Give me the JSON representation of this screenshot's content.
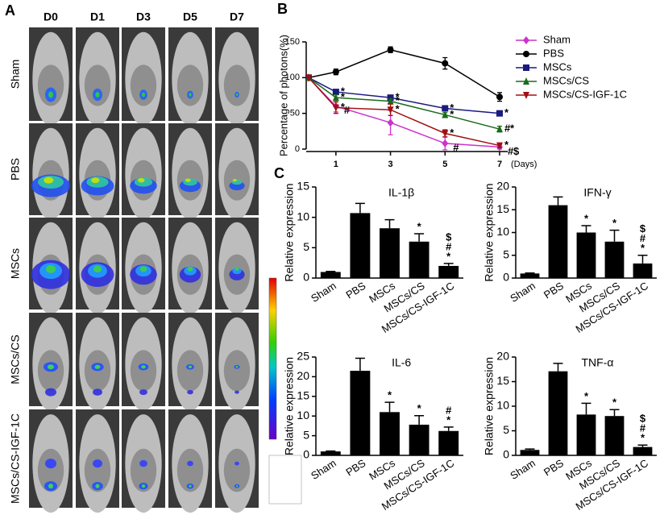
{
  "image_panel": {
    "label": "A",
    "columns": [
      "D0",
      "D1",
      "D3",
      "D5",
      "D7"
    ],
    "rows": [
      "Sham",
      "PBS",
      "MSCs",
      "MSCs/CS",
      "MSCs/CS-IGF-1C"
    ]
  },
  "chart_data": [
    {
      "type": "line",
      "panel": "B",
      "y_label": "Percentage of photons(%)",
      "x_unit_label": "(Days)",
      "x": [
        0,
        1,
        3,
        5,
        7
      ],
      "xlim": [
        0,
        7
      ],
      "xticks": [
        1,
        3,
        5,
        7
      ],
      "ylim": [
        0,
        150
      ],
      "yticks": [
        0,
        50,
        100,
        150
      ],
      "series": [
        {
          "name": "Sham",
          "color": "#cc33cc",
          "marker": "diamond",
          "values": [
            100,
            60,
            37,
            8,
            3
          ],
          "errors": [
            0,
            8,
            17,
            9,
            3
          ],
          "sig": [
            null,
            [
              "#"
            ],
            null,
            [
              "#"
            ],
            [
              "#",
              "$"
            ]
          ]
        },
        {
          "name": "PBS",
          "color": "#000000",
          "marker": "circle",
          "values": [
            100,
            108,
            139,
            120,
            73
          ],
          "errors": [
            0,
            4,
            4,
            8,
            6
          ],
          "sig": [
            null,
            null,
            null,
            null,
            null
          ]
        },
        {
          "name": "MSCs",
          "color": "#1a1a80",
          "marker": "square",
          "values": [
            100,
            80,
            72,
            57,
            50
          ],
          "errors": [
            0,
            3,
            3,
            3,
            3
          ],
          "sig": [
            null,
            [
              "*"
            ],
            [
              "*"
            ],
            [
              "*"
            ],
            [
              "*"
            ]
          ]
        },
        {
          "name": "MSCs/CS",
          "color": "#1a6b1a",
          "marker": "triangle-up",
          "values": [
            100,
            72,
            67,
            48,
            28
          ],
          "errors": [
            0,
            4,
            3,
            3,
            4
          ],
          "sig": [
            null,
            [
              "*"
            ],
            [
              "*"
            ],
            [
              "*"
            ],
            [
              "#",
              "*"
            ]
          ]
        },
        {
          "name": "MSCs/CS-IGF-1C",
          "color": "#a01010",
          "marker": "triangle-down",
          "values": [
            100,
            58,
            55,
            22,
            5
          ],
          "errors": [
            0,
            8,
            8,
            5,
            3
          ],
          "sig": [
            null,
            [
              "*"
            ],
            [
              "*"
            ],
            [
              "*"
            ],
            [
              "*"
            ]
          ]
        }
      ]
    },
    {
      "type": "bar",
      "panel": "C",
      "title": "IL-1β",
      "y_label": "Relative expression",
      "categories": [
        "Sham",
        "PBS",
        "MSCs",
        "MSCs/CS",
        "MSCs/CS-IGF-1C"
      ],
      "values": [
        1,
        10.7,
        8.2,
        6,
        2
      ],
      "errors": [
        0.1,
        1.6,
        1.4,
        1.3,
        0.4
      ],
      "sig": [
        null,
        null,
        null,
        [
          "*"
        ],
        [
          "$",
          "#",
          "*"
        ]
      ],
      "ylim": [
        0,
        15
      ],
      "yticks": [
        0,
        5,
        10,
        15
      ],
      "color": "#000000"
    },
    {
      "type": "bar",
      "title": "IFN-γ",
      "y_label": "Relative expression",
      "categories": [
        "Sham",
        "PBS",
        "MSCs",
        "MSCs/CS",
        "MSCs/CS-IGF-1C"
      ],
      "values": [
        1,
        16,
        10,
        8,
        3.2
      ],
      "errors": [
        0.1,
        1.8,
        1.5,
        2.5,
        1.8
      ],
      "sig": [
        null,
        null,
        [
          "*"
        ],
        [
          "*"
        ],
        [
          "$",
          "#",
          "*"
        ]
      ],
      "ylim": [
        0,
        20
      ],
      "yticks": [
        0,
        5,
        10,
        15,
        20
      ],
      "color": "#000000"
    },
    {
      "type": "bar",
      "title": "IL-6",
      "y_label": "Relative expression",
      "categories": [
        "Sham",
        "PBS",
        "MSCs",
        "MSCs/CS",
        "MSCs/CS-IGF-1C"
      ],
      "values": [
        1,
        21.5,
        11,
        7.8,
        6.2
      ],
      "errors": [
        0.1,
        3.2,
        2.5,
        2.3,
        1
      ],
      "sig": [
        null,
        null,
        [
          "*"
        ],
        [
          "*"
        ],
        [
          "#",
          "*"
        ]
      ],
      "ylim": [
        0,
        25
      ],
      "yticks": [
        0,
        5,
        10,
        15,
        20,
        25
      ],
      "color": "#000000"
    },
    {
      "type": "bar",
      "title": "TNF-α",
      "y_label": "Relative expression",
      "categories": [
        "Sham",
        "PBS",
        "MSCs",
        "MSCs/CS",
        "MSCs/CS-IGF-1C"
      ],
      "values": [
        1.1,
        17.1,
        8.3,
        8,
        1.7
      ],
      "errors": [
        0.2,
        1.6,
        2.3,
        1.3,
        0.4
      ],
      "sig": [
        null,
        null,
        [
          "*"
        ],
        [
          "*"
        ],
        [
          "$",
          "#",
          "*"
        ]
      ],
      "ylim": [
        0,
        20
      ],
      "yticks": [
        0,
        5,
        10,
        15,
        20
      ],
      "color": "#000000"
    }
  ]
}
